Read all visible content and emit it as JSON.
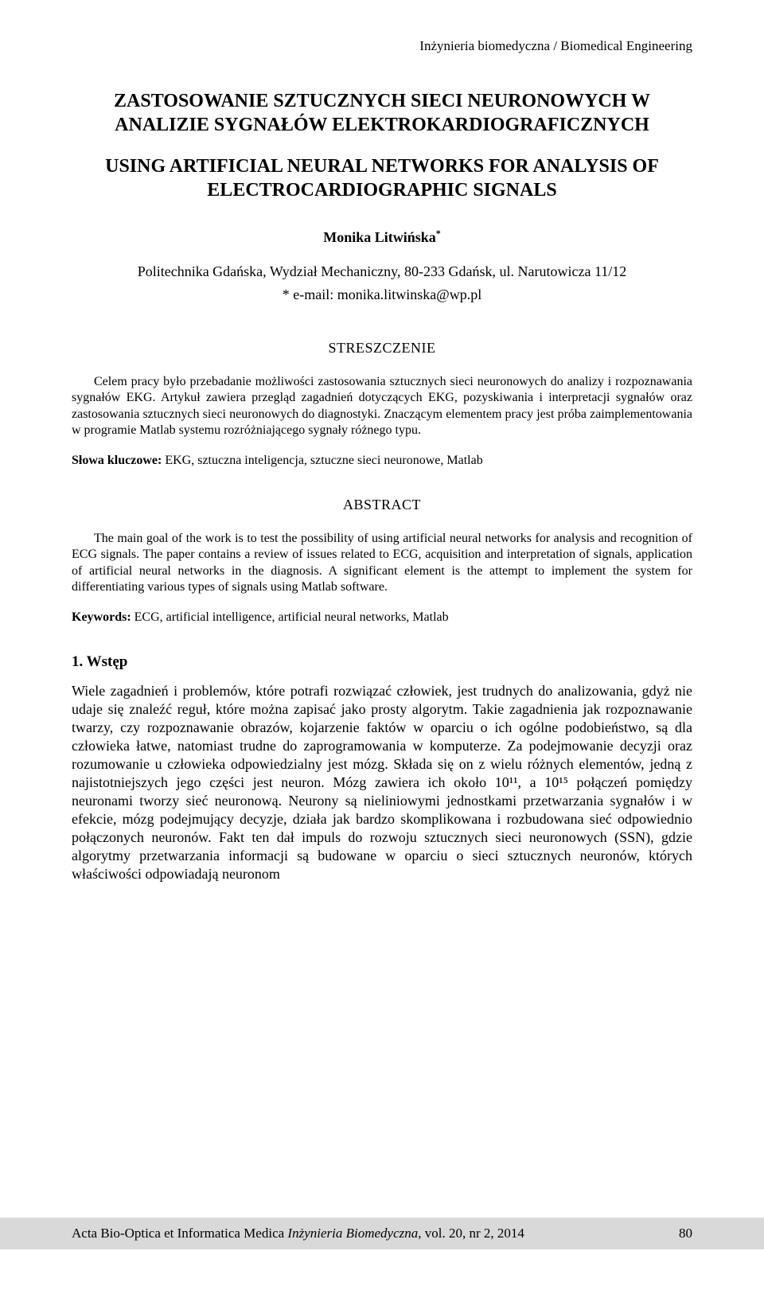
{
  "running_head": "Inżynieria biomedyczna / Biomedical Engineering",
  "title_pl": "ZASTOSOWANIE SZTUCZNYCH SIECI NEURONOWYCH W ANALIZIE SYGNAŁÓW ELEKTROKARDIOGRAFICZNYCH",
  "title_en": "USING ARTIFICIAL NEURAL NETWORKS FOR ANALYSIS OF ELECTROCARDIOGRAPHIC SIGNALS",
  "authors": "Monika Litwińska",
  "author_sup": "*",
  "affiliation": "Politechnika Gdańska, Wydział Mechaniczny, 80-233 Gdańsk, ul. Narutowicza 11/12",
  "email_line": "* e-mail: monika.litwinska@wp.pl",
  "streszczenie_head": "STRESZCZENIE",
  "streszczenie_p1": "Celem pracy było przebadanie możliwości zastosowania sztucznych sieci neuronowych do analizy i rozpoznawania sygnałów EKG. Artykuł zawiera przegląd zagadnień dotyczących EKG, pozyskiwania i interpretacji sygnałów oraz zastosowania sztucznych sieci neuronowych do diagnostyki. Znaczącym elementem pracy jest próba zaimplementowania w programie Matlab systemu rozróżniającego sygnały różnego typu.",
  "slowa_label": "Słowa kluczowe:",
  "slowa_value": " EKG, sztuczna inteligencja, sztuczne sieci neuronowe, Matlab",
  "abstract_head": "ABSTRACT",
  "abstract_p1": "The main goal of the work is to test the possibility of using artificial neural networks for analysis and recognition of ECG signals. The paper contains a review of issues related to ECG, acquisition and interpretation of signals, application of artificial neural networks in the diagnosis. A significant element is the attempt to implement the system for differentiating various types of signals using Matlab software.",
  "keywords_label": "Keywords:",
  "keywords_value": " ECG, artificial intelligence, artificial neural networks, Matlab",
  "section1_head": "1. Wstęp",
  "section1_body": "Wiele zagadnień i problemów, które potrafi rozwiązać człowiek, jest trudnych do analizowania, gdyż nie udaje się znaleźć reguł, które można zapisać jako prosty algorytm. Takie zagadnienia jak rozpoznawanie twarzy, czy rozpoznawanie obrazów, kojarzenie faktów w oparciu o ich ogólne podobieństwo, są dla człowieka łatwe, natomiast trudne do zaprogramowania w komputerze. Za podejmowanie decyzji oraz rozumowanie u człowieka odpowiedzialny jest mózg. Składa się on z wielu różnych elementów, jedną z najistotniejszych jego części jest neuron. Mózg zawiera ich około 10¹¹, a 10¹⁵ połączeń pomiędzy neuronami tworzy sieć neuronową. Neurony są nieliniowymi jednostkami przetwarzania sygnałów i w efekcie, mózg podejmujący decyzje, działa jak bardzo skomplikowana i rozbudowana sieć odpowiednio połączonych neuronów. Fakt ten dał impuls do rozwoju sztucznych sieci neuronowych (SSN), gdzie algorytmy przetwarzania informacji są budowane w oparciu o sieci sztucznych neuronów, których właściwości odpowiadają neuronom",
  "footer_journal_prefix": "Acta Bio-Optica et Informatica Medica ",
  "footer_journal_italic": "Inżynieria Biomedyczna",
  "footer_journal_suffix": ", vol. 20, nr 2, 2014",
  "footer_page": "80"
}
